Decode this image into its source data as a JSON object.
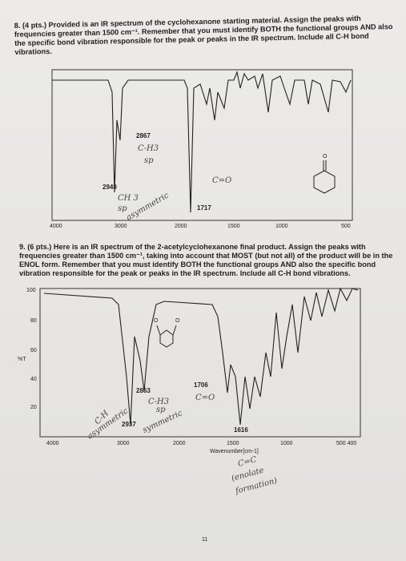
{
  "question_8": {
    "text": "8. (4 pts.) Provided is an IR spectrum of the cyclohexanone starting material. Assign the peaks with frequencies greater than 1500 cm⁻¹. Remember that you must identify BOTH the functional groups AND also the specific bond vibration responsible for the peak or peaks in the IR spectrum. Include all C-H bond vibrations.",
    "spectrum": {
      "x_ticks": [
        "4000",
        "3000",
        "2000",
        "1500",
        "1000",
        "500"
      ],
      "peak_labels": [
        "2867",
        "2940",
        "1717"
      ],
      "annotations": [
        "C-H3",
        "sp",
        "CH 3",
        "sp",
        "asymmetric",
        "C=O"
      ]
    }
  },
  "question_9": {
    "text": "9. (6 pts.) Here is an IR spectrum of the 2-acetylcyclohexanone final product. Assign the peaks with frequencies greater than 1500 cm⁻¹, taking into account that MOST (but not all) of the product will be in the ENOL form. Remember that you must identify BOTH the functional groups AND also the specific bond vibration responsible for the peak or peaks in the IR spectrum. Include all C-H bond vibrations.",
    "spectrum": {
      "y_axis_label": "%T",
      "y_ticks": [
        "100",
        "80",
        "60",
        "40",
        "20"
      ],
      "x_ticks": [
        "4000",
        "3000",
        "2000",
        "1500",
        "1000",
        "500 400"
      ],
      "x_axis_label": "Wavenumber[cm-1]",
      "peak_labels": [
        "2863",
        "2937",
        "1706",
        "1616"
      ],
      "annotations": [
        "C-H3",
        "sp",
        "symmetric",
        "C=O",
        "C-H",
        "asymmetric",
        "C=C",
        "(enolate",
        "formation)"
      ]
    }
  },
  "page_number": "11"
}
